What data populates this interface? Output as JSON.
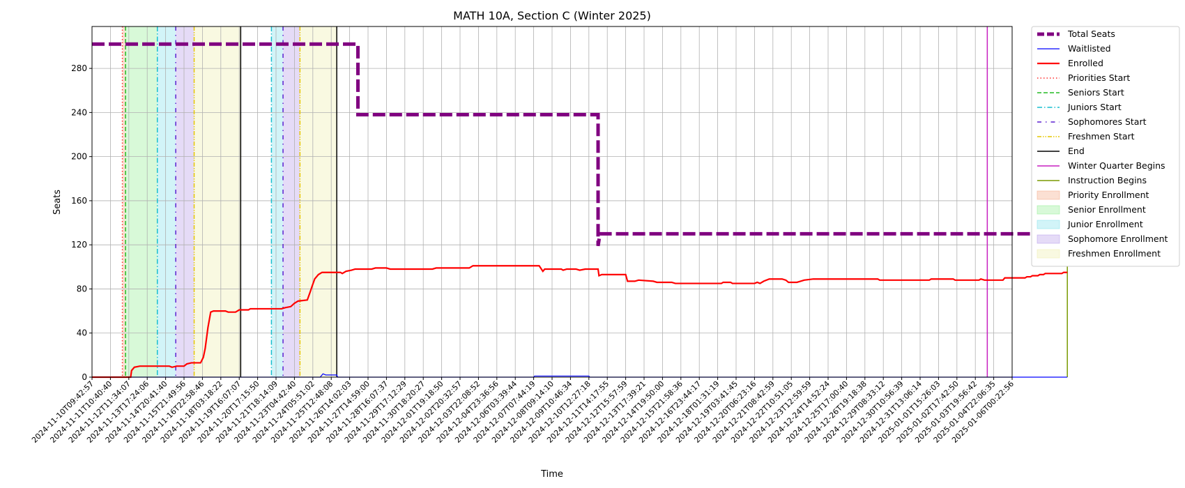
{
  "chart_data": {
    "type": "line",
    "title": "MATH 10A, Section C (Winter 2025)",
    "xlabel": "Time",
    "ylabel": "Seats",
    "x_range": [
      "2024-11-10T09:42:57",
      "2025-01-06T00:22:56"
    ],
    "ylim": [
      0,
      318
    ],
    "grid": true,
    "legend_position": "outside-right",
    "y_ticks": [
      0,
      40,
      80,
      120,
      160,
      200,
      240,
      280
    ],
    "x_ticks": [
      "2024-11-10T09:42:57",
      "2024-11-11T10:40:40",
      "2024-11-12T11:34:07",
      "2024-11-13T17:24:06",
      "2024-11-14T20:41:40",
      "2024-11-15T21:49:56",
      "2024-11-16T22:58:46",
      "2024-11-18T03:18:22",
      "2024-11-19T16:07:07",
      "2024-11-20T17:15:50",
      "2024-11-21T18:14:09",
      "2024-11-23T04:42:40",
      "2024-11-24T05:51:02",
      "2024-11-25T12:48:08",
      "2024-11-26T14:02:03",
      "2024-11-27T14:59:00",
      "2024-11-28T16:07:37",
      "2024-11-29T17:12:29",
      "2024-11-30T18:20:27",
      "2024-12-01T19:18:50",
      "2024-12-02T20:32:57",
      "2024-12-03T22:08:52",
      "2024-12-04T23:36:56",
      "2024-12-06T03:39:44",
      "2024-12-07T07:44:19",
      "2024-12-08T09:14:10",
      "2024-12-09T10:46:34",
      "2024-12-10T12:27:18",
      "2024-12-11T14:17:55",
      "2024-12-12T15:57:59",
      "2024-12-13T17:39:21",
      "2024-12-14T19:50:00",
      "2024-12-15T21:58:36",
      "2024-12-16T23:44:17",
      "2024-12-18T01:31:19",
      "2024-12-19T03:41:45",
      "2024-12-20T06:23:16",
      "2024-12-21T08:42:59",
      "2024-12-22T10:51:05",
      "2024-12-23T12:59:59",
      "2024-12-24T14:52:24",
      "2024-12-25T17:00:40",
      "2024-12-26T19:18:38",
      "2024-12-29T08:33:12",
      "2024-12-30T10:56:39",
      "2024-12-31T13:06:14",
      "2025-01-01T15:26:03",
      "2025-01-02T17:42:50",
      "2025-01-03T19:56:42",
      "2025-01-04T22:06:35",
      "2025-01-06T00:22:56"
    ],
    "bands": [
      {
        "name": "Priority Enrollment",
        "color": "#f4a582",
        "ranges": [
          [
            1.65,
            1.82
          ]
        ]
      },
      {
        "name": "Senior Enrollment",
        "color": "#90ee90",
        "ranges": [
          [
            1.82,
            3.55
          ]
        ]
      },
      {
        "name": "Junior Enrollment",
        "color": "#7fdfea",
        "ranges": [
          [
            3.55,
            4.55
          ],
          [
            9.75,
            10.38
          ]
        ]
      },
      {
        "name": "Sophomore Enrollment",
        "color": "#b497e7",
        "ranges": [
          [
            4.55,
            5.55
          ],
          [
            10.38,
            11.3
          ]
        ]
      },
      {
        "name": "Freshmen Enrollment",
        "color": "#eeeeaa",
        "ranges": [
          [
            5.55,
            8.08
          ],
          [
            11.3,
            13.3
          ]
        ]
      }
    ],
    "event_lines": [
      {
        "name": "Priorities Start",
        "color": "#ff2a2a",
        "style": "dotted",
        "x": [
          1.65
        ]
      },
      {
        "name": "Seniors Start",
        "color": "#22bb22",
        "style": "dashed",
        "x": [
          1.82
        ]
      },
      {
        "name": "Juniors Start",
        "color": "#17becf",
        "style": "dashdot",
        "x": [
          3.55,
          9.75
        ]
      },
      {
        "name": "Sophomores Start",
        "color": "#5b1fd0",
        "style": "dashdot-sparse",
        "x": [
          4.55,
          10.38
        ]
      },
      {
        "name": "Freshmen Start",
        "color": "#e6c700",
        "style": "dashdotdot",
        "x": [
          5.55,
          11.3
        ]
      },
      {
        "name": "End",
        "color": "#000000",
        "style": "solid",
        "x": [
          8.08,
          13.3
        ]
      },
      {
        "name": "Winter Quarter Begins",
        "color": "#c71fc0",
        "style": "solid",
        "x": [
          48.65
        ]
      },
      {
        "name": "Instruction Begins",
        "color": "#7a9a01",
        "style": "solid",
        "x": [
          53.0
        ]
      }
    ],
    "series": [
      {
        "name": "Total Seats",
        "color": "#800080",
        "style": "dashed-thick",
        "points": [
          [
            0,
            302
          ],
          [
            14.45,
            302
          ],
          [
            14.45,
            238
          ],
          [
            27.5,
            238
          ],
          [
            27.5,
            119
          ],
          [
            27.6,
            130
          ],
          [
            53.0,
            130
          ]
        ]
      },
      {
        "name": "Waitlisted",
        "color": "#0000ff",
        "style": "solid",
        "points": [
          [
            0,
            0
          ],
          [
            12.4,
            0
          ],
          [
            12.55,
            3
          ],
          [
            12.7,
            2
          ],
          [
            13.3,
            2
          ],
          [
            13.35,
            0
          ],
          [
            24.0,
            0
          ],
          [
            24.05,
            1
          ],
          [
            27.0,
            1
          ],
          [
            27.05,
            0
          ],
          [
            53.0,
            0
          ]
        ]
      },
      {
        "name": "Enrolled",
        "color": "#ff0000",
        "style": "solid-thick",
        "points": [
          [
            0,
            0
          ],
          [
            2.1,
            0
          ],
          [
            2.15,
            6
          ],
          [
            2.3,
            9
          ],
          [
            2.6,
            10
          ],
          [
            4.2,
            10
          ],
          [
            4.35,
            9
          ],
          [
            4.6,
            10
          ],
          [
            5.0,
            10
          ],
          [
            5.15,
            12
          ],
          [
            5.4,
            13
          ],
          [
            5.9,
            13
          ],
          [
            6.05,
            18
          ],
          [
            6.15,
            26
          ],
          [
            6.3,
            45
          ],
          [
            6.45,
            59
          ],
          [
            6.6,
            60
          ],
          [
            7.25,
            60
          ],
          [
            7.4,
            59
          ],
          [
            7.8,
            59
          ],
          [
            8.0,
            61
          ],
          [
            8.5,
            61
          ],
          [
            8.6,
            62
          ],
          [
            10.3,
            62
          ],
          [
            10.5,
            63
          ],
          [
            10.8,
            64
          ],
          [
            11.0,
            67
          ],
          [
            11.2,
            69
          ],
          [
            11.7,
            70
          ],
          [
            11.85,
            77
          ],
          [
            11.95,
            82
          ],
          [
            12.1,
            89
          ],
          [
            12.3,
            93
          ],
          [
            12.5,
            95
          ],
          [
            13.5,
            95
          ],
          [
            13.6,
            94
          ],
          [
            13.8,
            96
          ],
          [
            14.1,
            97
          ],
          [
            14.3,
            98
          ],
          [
            15.2,
            98
          ],
          [
            15.4,
            99
          ],
          [
            16.0,
            99
          ],
          [
            16.2,
            98
          ],
          [
            18.5,
            98
          ],
          [
            18.7,
            99
          ],
          [
            20.5,
            99
          ],
          [
            20.7,
            101
          ],
          [
            24.3,
            101
          ],
          [
            24.5,
            96
          ],
          [
            24.6,
            98
          ],
          [
            25.5,
            98
          ],
          [
            25.6,
            97
          ],
          [
            25.8,
            98
          ],
          [
            26.3,
            98
          ],
          [
            26.5,
            97
          ],
          [
            26.8,
            98
          ],
          [
            27.5,
            98
          ],
          [
            27.55,
            92
          ],
          [
            27.7,
            93
          ],
          [
            29.0,
            93
          ],
          [
            29.1,
            87
          ],
          [
            29.5,
            87
          ],
          [
            29.7,
            88
          ],
          [
            30.5,
            87
          ],
          [
            30.7,
            86
          ],
          [
            31.5,
            86
          ],
          [
            31.7,
            85
          ],
          [
            34.2,
            85
          ],
          [
            34.3,
            86
          ],
          [
            34.7,
            86
          ],
          [
            34.8,
            85
          ],
          [
            36.0,
            85
          ],
          [
            36.15,
            86
          ],
          [
            36.3,
            85
          ],
          [
            36.5,
            87
          ],
          [
            36.8,
            89
          ],
          [
            37.5,
            89
          ],
          [
            37.7,
            88
          ],
          [
            37.85,
            86
          ],
          [
            38.3,
            86
          ],
          [
            38.5,
            87
          ],
          [
            38.7,
            88
          ],
          [
            39.2,
            89
          ],
          [
            42.7,
            89
          ],
          [
            42.8,
            88
          ],
          [
            45.5,
            88
          ],
          [
            45.6,
            89
          ],
          [
            46.8,
            89
          ],
          [
            46.9,
            88
          ],
          [
            48.2,
            88
          ],
          [
            48.3,
            89
          ],
          [
            48.5,
            88
          ],
          [
            49.5,
            88
          ],
          [
            49.6,
            90
          ],
          [
            50.7,
            90
          ],
          [
            50.8,
            91
          ],
          [
            51.0,
            91
          ],
          [
            51.1,
            92
          ],
          [
            51.4,
            92
          ],
          [
            51.5,
            93
          ],
          [
            51.7,
            93
          ],
          [
            51.8,
            94
          ],
          [
            52.7,
            94
          ],
          [
            52.8,
            95
          ],
          [
            53.0,
            95
          ]
        ]
      }
    ],
    "legend": [
      "Total Seats",
      "Waitlisted",
      "Enrolled",
      "Priorities Start",
      "Seniors Start",
      "Juniors Start",
      "Sophomores Start",
      "Freshmen Start",
      "End",
      "Winter Quarter Begins",
      "Instruction Begins",
      "Priority Enrollment",
      "Senior Enrollment",
      "Junior Enrollment",
      "Sophomore Enrollment",
      "Freshmen Enrollment"
    ]
  }
}
